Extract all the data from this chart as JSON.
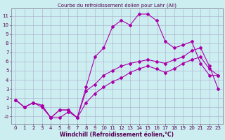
{
  "title": "Courbe du refroidissement éolien pour Lahr (All)",
  "xlabel": "Windchill (Refroidissement éolien,°C)",
  "bg_color": "#cceef0",
  "grid_color": "#aaaacc",
  "line_color": "#aa00aa",
  "x_values": [
    0,
    1,
    2,
    3,
    4,
    5,
    6,
    7,
    8,
    9,
    10,
    11,
    12,
    13,
    14,
    15,
    16,
    17,
    18,
    19,
    20,
    21,
    22,
    23
  ],
  "line1": [
    1.8,
    1.0,
    1.5,
    1.2,
    -0.15,
    0.7,
    0.7,
    -0.15,
    1.5,
    2.5,
    3.2,
    3.8,
    4.2,
    4.8,
    5.2,
    5.5,
    5.2,
    4.8,
    5.2,
    5.8,
    6.2,
    6.5,
    5.2,
    4.5
  ],
  "line2": [
    1.8,
    1.0,
    1.5,
    1.0,
    -0.15,
    -0.15,
    0.5,
    -0.15,
    3.2,
    6.5,
    7.5,
    9.8,
    10.5,
    10.0,
    11.2,
    11.2,
    10.5,
    8.2,
    7.5,
    7.8,
    8.2,
    5.8,
    4.5,
    4.5
  ],
  "line3": [
    1.8,
    1.0,
    1.5,
    1.2,
    -0.15,
    0.7,
    0.7,
    -0.15,
    2.8,
    3.5,
    4.5,
    5.0,
    5.5,
    5.8,
    6.0,
    6.2,
    6.0,
    5.8,
    6.2,
    6.5,
    7.2,
    7.5,
    5.5,
    3.0
  ],
  "ylim": [
    -0.8,
    11.8
  ],
  "xlim": [
    -0.5,
    23.5
  ],
  "yticks": [
    0,
    1,
    2,
    3,
    4,
    5,
    6,
    7,
    8,
    9,
    10,
    11
  ],
  "ytick_labels": [
    "-0",
    "1",
    "2",
    "3",
    "4",
    "5",
    "6",
    "7",
    "8",
    "9",
    "10",
    "11"
  ],
  "xticks": [
    0,
    1,
    2,
    3,
    4,
    5,
    6,
    7,
    8,
    9,
    10,
    11,
    12,
    13,
    14,
    15,
    16,
    17,
    18,
    19,
    20,
    21,
    22,
    23
  ],
  "tick_fontsize": 5.0,
  "xlabel_fontsize": 5.5,
  "title_fontsize": 5.0,
  "marker_size": 2.0,
  "line_width": 0.8
}
